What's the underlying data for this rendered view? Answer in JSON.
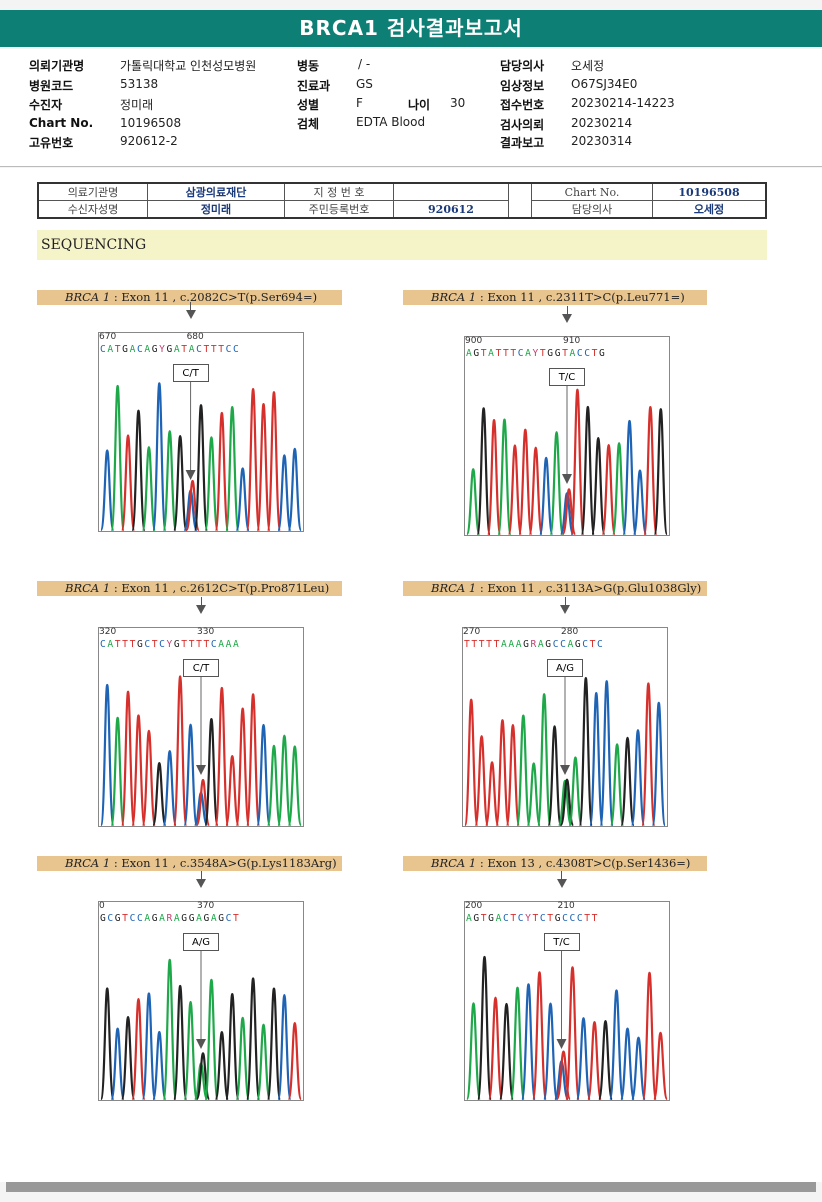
{
  "title": "BRCA1 검사결과보고서",
  "header": {
    "col1": [
      {
        "label": "의뢰기관명",
        "value": "가톨릭대학교 인천성모병원"
      },
      {
        "label": "병원코드",
        "value": "53138"
      },
      {
        "label": "수진자",
        "value": "정미래"
      },
      {
        "label": "Chart No.",
        "value": "10196508"
      },
      {
        "label": "고유번호",
        "value": "920612-2"
      }
    ],
    "col2": [
      {
        "label": "병동",
        "value": "/ -"
      },
      {
        "label": "진료과",
        "value": "GS"
      },
      {
        "label": "성별",
        "value": "F"
      },
      {
        "label": "검체",
        "value": "EDTA Blood"
      }
    ],
    "age": {
      "label": "나이",
      "value": "30"
    },
    "col3": [
      {
        "label": "담당의사",
        "value": "오세정"
      },
      {
        "label": "임상정보",
        "value": "O67SJ34E0"
      },
      {
        "label": "접수번호",
        "value": "20230214-14223"
      },
      {
        "label": "검사의뢰",
        "value": "20230214"
      },
      {
        "label": "결과보고",
        "value": "20230314"
      }
    ]
  },
  "report_table": {
    "r1": {
      "l1": "의료기관명",
      "v1": "삼광의료재단",
      "l2": "지 정 번 호",
      "v2": "",
      "l3": "Chart No.",
      "v3": "10196508"
    },
    "r2": {
      "l1": "수신자성명",
      "v1": "정미래",
      "l2": "주민등록번호",
      "v2": "920612",
      "l3": "담당의사",
      "v3": "오세정"
    }
  },
  "section": "SEQUENCING",
  "variants": [
    {
      "gene": "BRCA 1",
      "rest": " : Exon 11 , c.2082C>T(p.Ser694=)",
      "call": "C/T",
      "seq": "CATGACAGYGATACTTTCC",
      "pos1": "670",
      "pos2": "680"
    },
    {
      "gene": "BRCA 1",
      "rest": " : Exon 11 , c.2311T>C(p.Leu771=)",
      "call": "T/C",
      "seq": "AGTATTTCAYTGGTACCTG",
      "pos1": "900",
      "pos2": "910"
    },
    {
      "gene": "BRCA 1",
      "rest": " : Exon 11 , c.2612C>T(p.Pro871Leu)",
      "call": "C/T",
      "seq": "CATTTGCTCYGTTTTCAAA",
      "pos1": "320",
      "pos2": "330"
    },
    {
      "gene": "BRCA 1",
      "rest": " : Exon 11 , c.3113A>G(p.Glu1038Gly)",
      "call": "A/G",
      "seq": "TTTTTAAAGRAGCCAGCTC",
      "pos1": "270",
      "pos2": "280"
    },
    {
      "gene": "BRCA 1",
      "rest": " : Exon 11 , c.3548A>G(p.Lys1183Arg)",
      "call": "A/G",
      "seq": "GCGTCCAGARAGGAGAGCT",
      "pos1": "0",
      "pos2": "370"
    },
    {
      "gene": "BRCA 1",
      "rest": " : Exon 13 , c.4308T>C(p.Ser1436=)",
      "call": "T/C",
      "seq": "AGTGACTCYTCTGCCCTT",
      "pos1": "200",
      "pos2": "210"
    }
  ],
  "colors": {
    "A": "#1fa84a",
    "C": "#1e63b4",
    "G": "#222222",
    "T": "#d6302c",
    "accent": "#0e7f74"
  }
}
